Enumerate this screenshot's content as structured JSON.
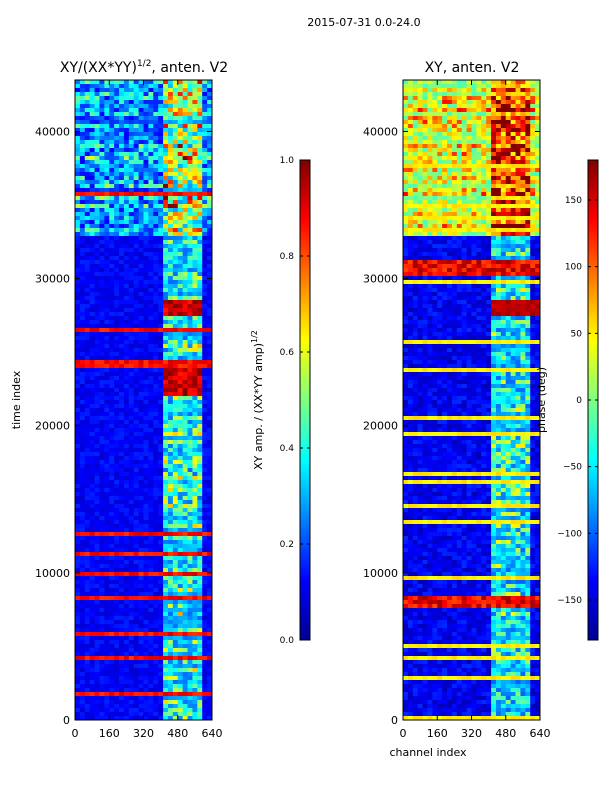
{
  "suptitle": "2015-07-31 0.0-24.0",
  "chart_data": [
    {
      "type": "heatmap",
      "title": "XY/(XX*YY)",
      "title_superscript": "1/2",
      "title_suffix": ", anten. V2",
      "xlabel": "",
      "ylabel": "time index",
      "xlim": [
        0,
        640
      ],
      "ylim": [
        0,
        43500
      ],
      "xticks": [
        "0",
        "160",
        "320",
        "480",
        "640"
      ],
      "yticks": [
        "0",
        "10000",
        "20000",
        "30000",
        "40000"
      ],
      "colorbar": {
        "label": "XY amp. / (XX*YY amp)",
        "label_superscript": "1/2",
        "range": [
          0.0,
          1.0
        ],
        "ticks": [
          "0.0",
          "0.2",
          "0.4",
          "0.6",
          "0.8",
          "1.0"
        ]
      },
      "features": [
        {
          "desc": "high-variance band",
          "time_range": [
            33000,
            43500
          ],
          "level": 0.35
        },
        {
          "desc": "bright channels",
          "channel_range": [
            400,
            600
          ],
          "level": 0.5
        },
        {
          "desc": "hot spots",
          "time_range": [
            22000,
            24000
          ],
          "channel_range": [
            400,
            600
          ],
          "level": 0.95
        },
        {
          "desc": "hot spots",
          "time_range": [
            27500,
            28500
          ],
          "channel_range": [
            400,
            600
          ],
          "level": 0.9
        }
      ]
    },
    {
      "type": "heatmap",
      "title": "XY, anten. V2",
      "xlabel": "channel index",
      "ylabel": "",
      "xlim": [
        0,
        640
      ],
      "ylim": [
        0,
        43500
      ],
      "xticks": [
        "0",
        "160",
        "320",
        "480",
        "640"
      ],
      "yticks": [
        "0",
        "10000",
        "20000",
        "30000",
        "40000"
      ],
      "colorbar": {
        "label": "phase (deg)",
        "range": [
          -180,
          180
        ],
        "ticks": [
          "−150",
          "−100",
          "−50",
          "0",
          "50",
          "100",
          "150"
        ]
      },
      "features": [
        {
          "desc": "mixed-phase band",
          "time_range": [
            33000,
            43500
          ],
          "level": 60
        },
        {
          "desc": "phase band",
          "time_range": [
            30200,
            31200
          ],
          "level": 120
        },
        {
          "desc": "phase band",
          "time_range": [
            7500,
            8500
          ],
          "level": 140
        }
      ]
    }
  ]
}
